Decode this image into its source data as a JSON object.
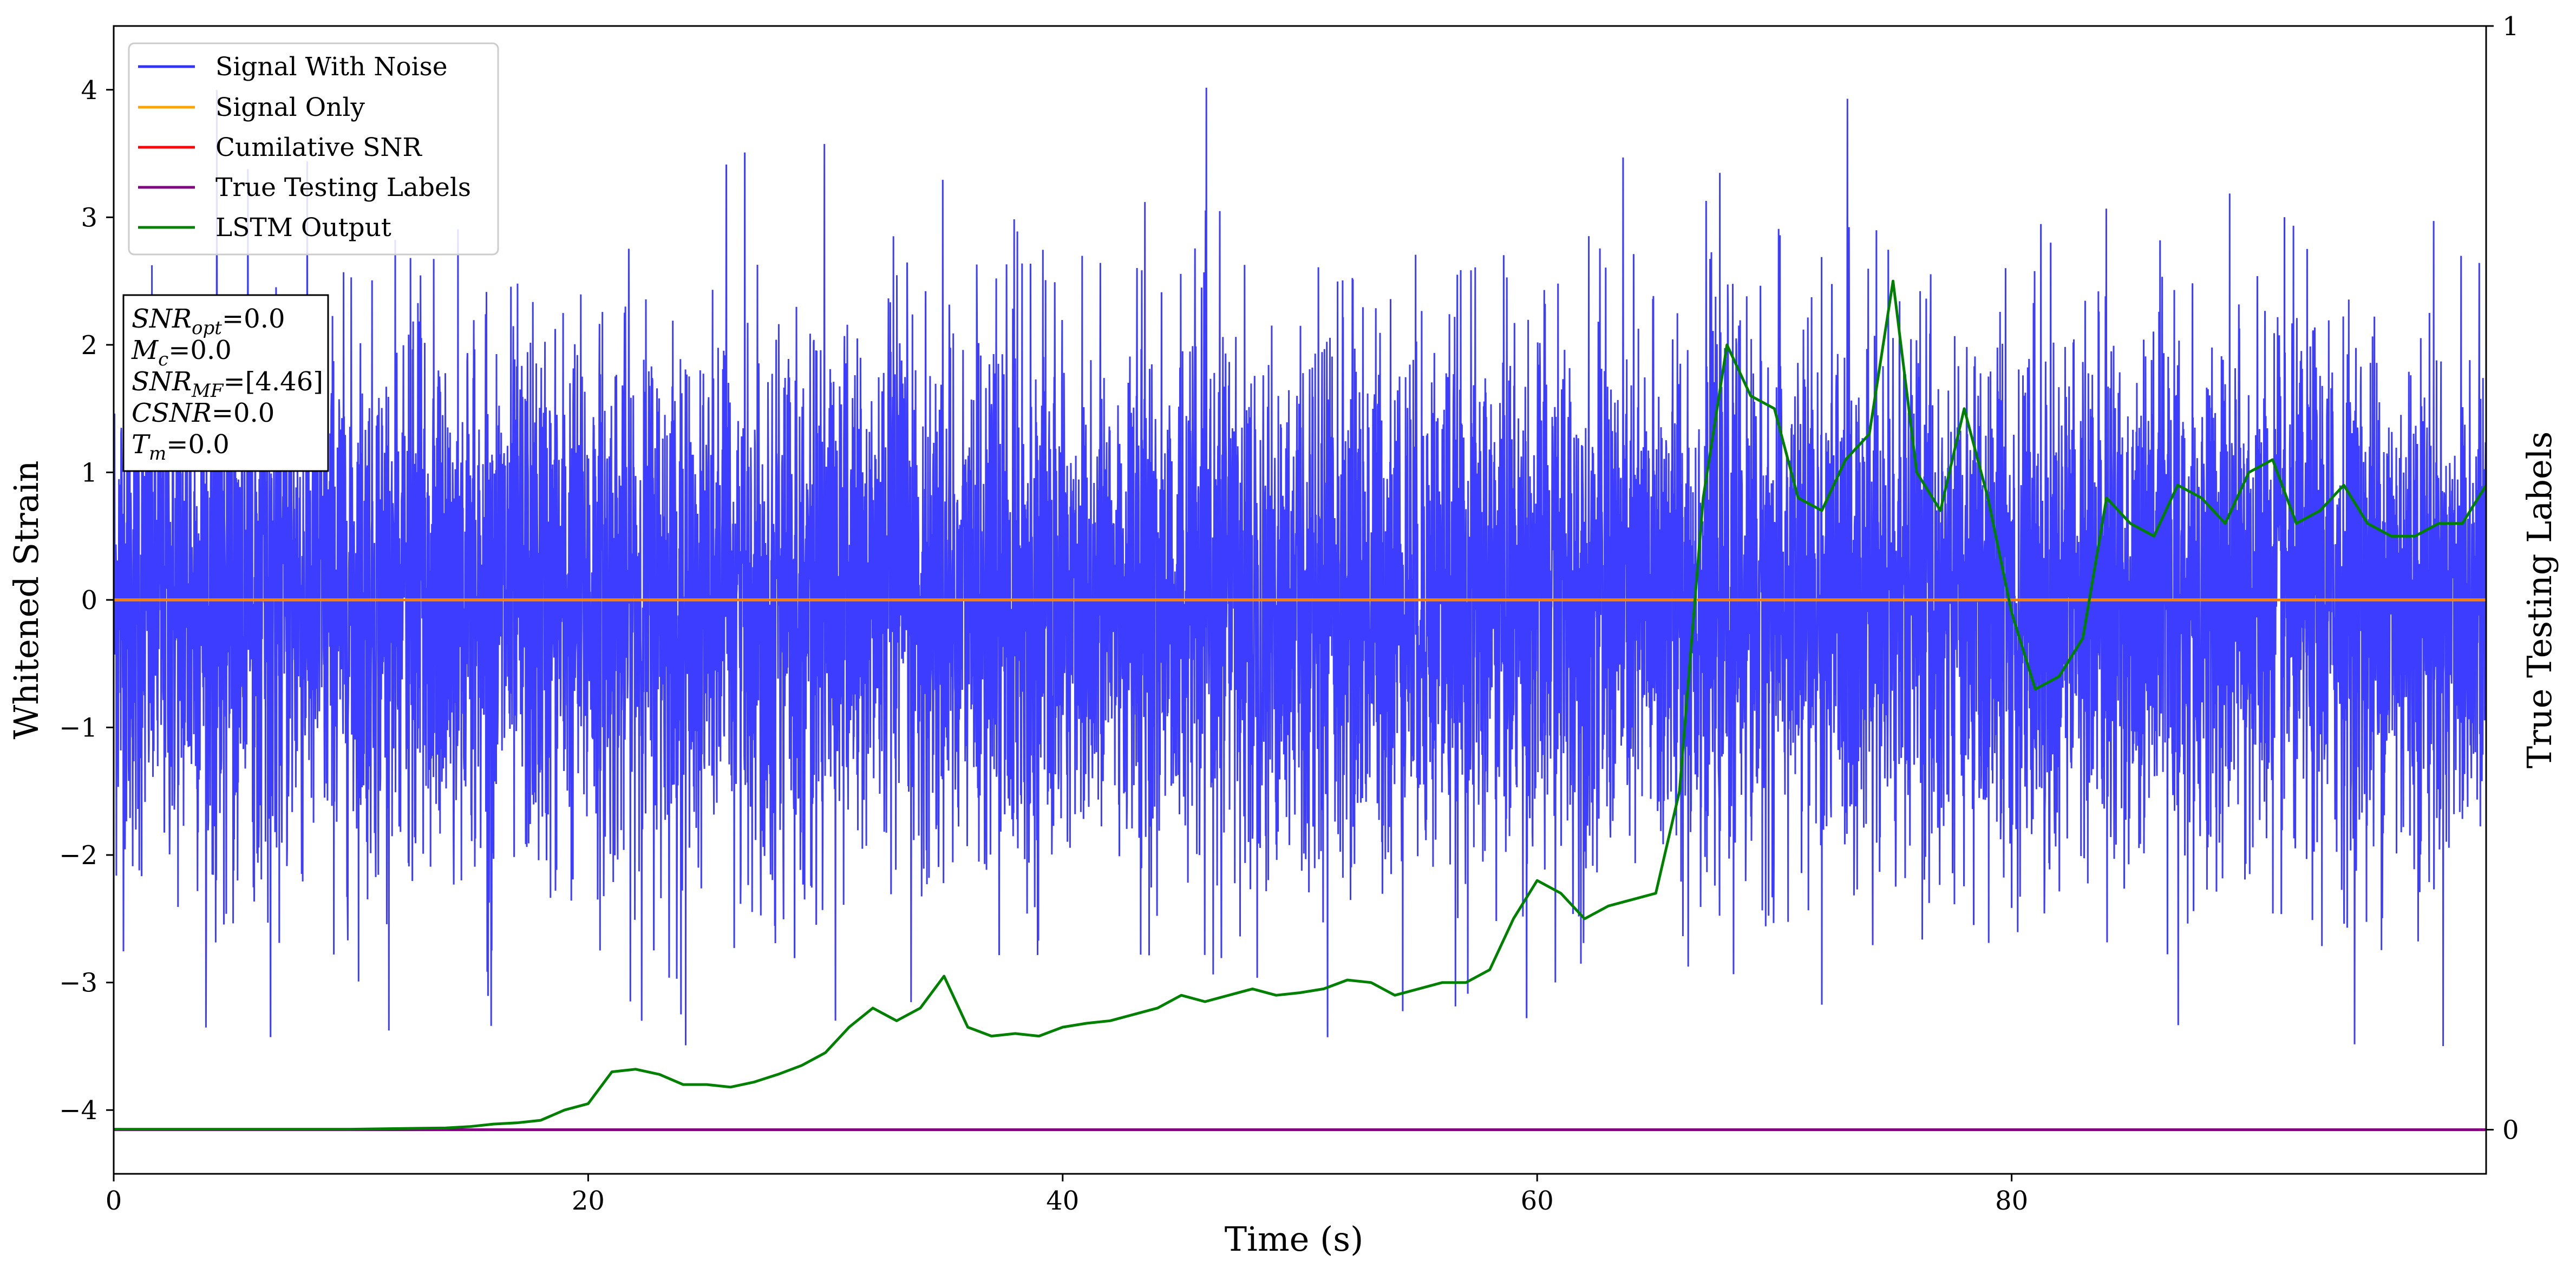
{
  "chart_data": {
    "type": "line",
    "xlabel": "Time (s)",
    "ylabel": "Whitened Strain",
    "y2label": "True Testing Labels",
    "xlim": [
      0,
      100
    ],
    "ylim": [
      -4.5,
      4.5
    ],
    "y2lim": [
      -0.04,
      1.0
    ],
    "xticks": [
      "0",
      "20",
      "40",
      "60",
      "80"
    ],
    "yticks": [
      "4",
      "3",
      "2",
      "1",
      "0",
      "−1",
      "−2",
      "−3",
      "−4"
    ],
    "y2ticks": [
      "1",
      "0"
    ],
    "legend_position": "top-left",
    "info_box": {
      "snr_opt": {
        "main": "SNR",
        "sub": "opt",
        "value": "=0.0"
      },
      "mc": {
        "main": "M",
        "sub": "c",
        "value": "=0.0"
      },
      "snr_mf": {
        "main": "SNR",
        "sub": "MF",
        "value": "=[4.46]"
      },
      "csnr": {
        "main": "CSNR",
        "sub": "",
        "value": "=0.0"
      },
      "tm": {
        "main": "T",
        "sub": "m",
        "value": "=0.0"
      }
    },
    "series": [
      {
        "name": "Signal With Noise",
        "color": "#3333ff",
        "description_kind": "noise",
        "amplitude_range": [
          -3.5,
          4.1
        ]
      },
      {
        "name": "Signal Only",
        "color": "#ffa500",
        "y_value": 0.0
      },
      {
        "name": "Cumilative SNR",
        "color": "#ff0000",
        "y_value": 0.0
      },
      {
        "name": "True Testing Labels",
        "color": "#800080",
        "axis": "right",
        "y_value": 0.0
      },
      {
        "name": "LSTM Output",
        "color": "#008000",
        "axis": "left",
        "x": [
          0,
          10,
          14,
          15,
          16,
          17,
          18,
          19,
          20,
          21,
          22,
          23,
          24,
          25,
          26,
          27,
          28,
          29,
          30,
          31,
          32,
          33,
          34,
          35,
          36,
          37,
          38,
          39,
          40,
          41,
          42,
          43,
          44,
          45,
          46,
          47,
          48,
          49,
          50,
          51,
          52,
          53,
          54,
          55,
          56,
          57,
          58,
          59,
          60,
          61,
          62,
          63,
          64,
          65,
          66,
          67,
          68,
          69,
          70,
          71,
          72,
          73,
          74,
          75,
          76,
          77,
          78,
          79,
          80,
          81,
          82,
          83,
          84,
          85,
          86,
          87,
          88,
          89,
          90,
          91,
          92,
          93,
          94,
          95,
          96,
          97,
          98,
          99,
          100
        ],
        "y": [
          -4.15,
          -4.15,
          -4.14,
          -4.13,
          -4.11,
          -4.1,
          -4.08,
          -4.0,
          -3.95,
          -3.7,
          -3.68,
          -3.72,
          -3.8,
          -3.8,
          -3.82,
          -3.78,
          -3.72,
          -3.65,
          -3.55,
          -3.35,
          -3.2,
          -3.3,
          -3.2,
          -2.95,
          -3.35,
          -3.42,
          -3.4,
          -3.42,
          -3.35,
          -3.32,
          -3.3,
          -3.25,
          -3.2,
          -3.1,
          -3.15,
          -3.1,
          -3.05,
          -3.1,
          -3.08,
          -3.05,
          -2.98,
          -3.0,
          -3.1,
          -3.05,
          -3.0,
          -3.0,
          -2.9,
          -2.5,
          -2.2,
          -2.3,
          -2.5,
          -2.4,
          -2.35,
          -2.3,
          -1.5,
          0.8,
          2.0,
          1.6,
          1.5,
          0.8,
          0.7,
          1.1,
          1.3,
          2.5,
          1.0,
          0.7,
          1.5,
          0.8,
          -0.1,
          -0.7,
          -0.6,
          -0.3,
          0.8,
          0.6,
          0.5,
          0.9,
          0.8,
          0.6,
          1.0,
          1.1,
          0.6,
          0.7,
          0.9,
          0.6,
          0.5,
          0.5,
          0.6,
          0.6,
          0.9
        ]
      }
    ]
  }
}
